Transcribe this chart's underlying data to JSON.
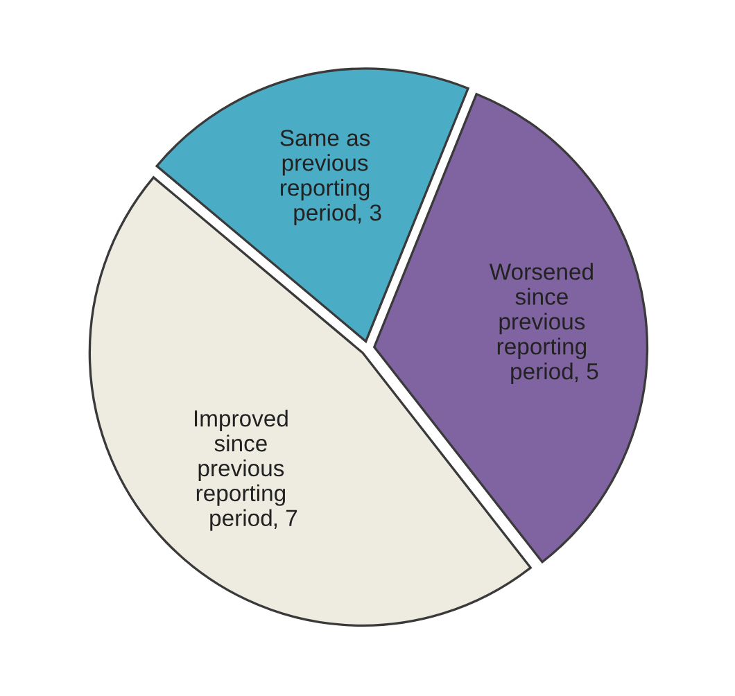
{
  "chart_data": {
    "type": "pie",
    "categories": [
      "Same as previous reporting period",
      "Worsened since previous reporting period",
      "Improved since previous reporting period"
    ],
    "values": [
      3,
      5,
      7
    ],
    "value_labels": [
      ", 3",
      ", 5",
      ", 7"
    ],
    "colors": [
      "#4bacc6",
      "#8064a2",
      "#eeece1"
    ],
    "legend": false
  }
}
